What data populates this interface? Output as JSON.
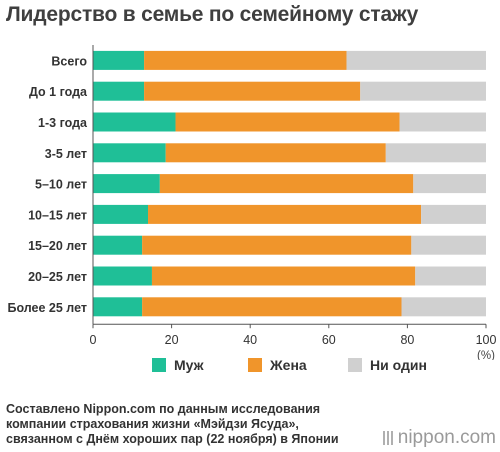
{
  "title": "Лидерство в семье по семейному стажу",
  "chart_data": {
    "type": "bar",
    "orientation": "horizontal",
    "stacked": true,
    "categories": [
      "Всего",
      "До 1 года",
      "1-3 года",
      "3-5 лет",
      "5–10 лет",
      "10–15 лет",
      "15–20 лет",
      "20–25 лет",
      "Более 25 лет"
    ],
    "series": [
      {
        "name": "Муж",
        "values": [
          13,
          13,
          21,
          18.5,
          17,
          14,
          12.5,
          15,
          12.5
        ],
        "color": "#1fbf97"
      },
      {
        "name": "Жена",
        "values": [
          51.5,
          55,
          57,
          56,
          64.5,
          69.5,
          68.5,
          67,
          66
        ],
        "color": "#f0952b"
      },
      {
        "name": "Ни один",
        "values": [
          35.5,
          32,
          22,
          25.5,
          18.5,
          16.5,
          19,
          18,
          21.5
        ],
        "color": "#d0d0d0"
      }
    ],
    "xlim": [
      0,
      100
    ],
    "xticks": [
      "0",
      "20",
      "40",
      "60",
      "80",
      "100"
    ],
    "xunit": "(%)",
    "grid": false,
    "legend": "bottom"
  },
  "legend": {
    "items": [
      {
        "label": "Муж",
        "color": "#1fbf97"
      },
      {
        "label": "Жена",
        "color": "#f0952b"
      },
      {
        "label": "Ни один",
        "color": "#d0d0d0"
      }
    ]
  },
  "source": {
    "line1": "Составлено Nippon.com по данным исследования",
    "line2": "компании страхования жизни «Мэйдзи Ясуда»,",
    "line3": "связанном с Днём хороших пар (22 ноября) в Японии"
  },
  "brand": "nippon.com"
}
